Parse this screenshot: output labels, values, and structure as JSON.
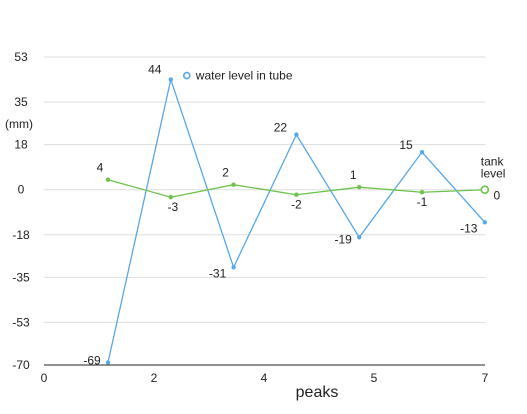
{
  "chart_data": {
    "type": "line",
    "x": [
      1.0,
      2.0,
      3.0,
      4.0,
      5.0,
      6.0,
      7.0
    ],
    "xlim": [
      0,
      7
    ],
    "x_ticks": [
      "0",
      "2",
      "4",
      "5",
      "7"
    ],
    "x_tick_values": [
      0,
      2,
      4,
      5,
      7
    ],
    "ylim": [
      -70,
      53
    ],
    "y_ticks": [
      "53",
      "35",
      "18",
      "0",
      "-18",
      "-35",
      "-53",
      "-70"
    ],
    "y_tick_values": [
      53,
      35,
      18,
      0,
      -18,
      -35,
      -53,
      -70
    ],
    "xlabel": "peaks",
    "ylabel": "(mm)",
    "grid": "horizontal",
    "series": [
      {
        "name": "water level in tube",
        "color": "#56a8ea",
        "x": [
          1.14,
          2.29,
          3.43,
          4.57,
          5.71,
          6.86,
          8.0
        ],
        "values": [
          -69,
          44,
          -31,
          22,
          -19,
          15,
          -13
        ],
        "labels": [
          "-69",
          "44",
          "-31",
          "22",
          "-19",
          "15",
          "-13"
        ]
      },
      {
        "name": "tank level",
        "name_lines": [
          "tank",
          "level"
        ],
        "color": "#6cc24a",
        "x": [
          1.14,
          2.29,
          3.43,
          4.57,
          5.71,
          6.86,
          8.0
        ],
        "values": [
          4,
          -3,
          2,
          -2,
          1,
          -1,
          0
        ],
        "labels": [
          "4",
          "-3",
          "2",
          "-2",
          "1",
          "-1",
          "0"
        ]
      }
    ]
  }
}
